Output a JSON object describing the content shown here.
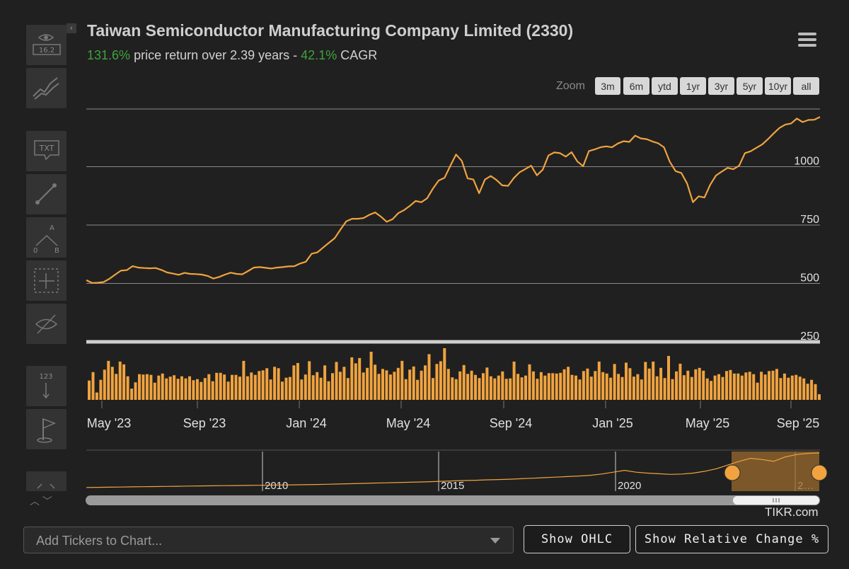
{
  "header": {
    "title": "Taiwan Semiconductor Manufacturing Company Limited (2330)",
    "price_return": "131.6%",
    "return_text": " price return over 2.39 years - ",
    "cagr": "42.1%",
    "cagr_label": " CAGR"
  },
  "toolbar": {
    "collapse_glyph": "‹",
    "eye_badge": "16.2",
    "text_tool_label": "TXT",
    "measure_labels": [
      "A",
      "0",
      "B"
    ],
    "numbers_label": "123",
    "tools": [
      "visibility-counter-icon",
      "trend-icon",
      "text-annotation-icon",
      "line-draw-icon",
      "measure-icon",
      "crosshair-select-icon",
      "hide-icon",
      "numbers-order-icon",
      "flag-icon",
      "expand-icon"
    ]
  },
  "zoom": {
    "label": "Zoom",
    "options": [
      "3m",
      "6m",
      "ytd",
      "1yr",
      "3yr",
      "5yr",
      "10yr",
      "all"
    ]
  },
  "chart_data": {
    "type": "line",
    "title": "Taiwan Semiconductor Manufacturing Company Limited (2330)",
    "series_color": "#f0a33f",
    "y_ticks": [
      250,
      500,
      750,
      1000
    ],
    "ylim": [
      250,
      1250
    ],
    "x_tick_labels": [
      "May '23",
      "Sep '23",
      "Jan '24",
      "May '24",
      "Sep '24",
      "Jan '25",
      "May '25",
      "Sep '25"
    ],
    "price": [
      514,
      502,
      503,
      506,
      520,
      538,
      555,
      557,
      574,
      568,
      566,
      565,
      566,
      558,
      547,
      542,
      537,
      545,
      541,
      540,
      538,
      532,
      521,
      528,
      538,
      546,
      541,
      539,
      553,
      568,
      570,
      567,
      564,
      568,
      570,
      573,
      574,
      585,
      593,
      627,
      633,
      654,
      674,
      694,
      731,
      766,
      777,
      777,
      780,
      794,
      804,
      786,
      764,
      775,
      801,
      814,
      832,
      853,
      848,
      865,
      906,
      941,
      952,
      1003,
      1052,
      1025,
      950,
      945,
      886,
      945,
      960,
      943,
      920,
      918,
      951,
      976,
      990,
      1004,
      963,
      987,
      1048,
      1061,
      1058,
      1043,
      1062,
      1022,
      1002,
      1067,
      1074,
      1083,
      1087,
      1083,
      1099,
      1109,
      1106,
      1133,
      1121,
      1118,
      1108,
      1100,
      1083,
      1021,
      981,
      973,
      928,
      848,
      873,
      868,
      923,
      962,
      979,
      995,
      989,
      1004,
      1058,
      1066,
      1081,
      1095,
      1118,
      1143,
      1166,
      1180,
      1185,
      1206,
      1191,
      1200,
      1201,
      1213
    ],
    "volume": [
      55,
      79,
      21,
      57,
      86,
      111,
      94,
      74,
      109,
      101,
      67,
      32,
      50,
      73,
      72,
      73,
      71,
      49,
      69,
      75,
      61,
      66,
      70,
      60,
      67,
      61,
      67,
      56,
      59,
      51,
      62,
      73,
      53,
      77,
      77,
      72,
      52,
      71,
      71,
      66,
      111,
      67,
      78,
      71,
      82,
      84,
      90,
      58,
      94,
      90,
      52,
      63,
      65,
      98,
      105,
      58,
      72,
      110,
      70,
      79,
      63,
      98,
      53,
      76,
      108,
      80,
      94,
      62,
      121,
      104,
      119,
      78,
      91,
      137,
      100,
      74,
      88,
      84,
      72,
      80,
      91,
      111,
      59,
      86,
      95,
      57,
      83,
      98,
      130,
      62,
      102,
      110,
      147,
      88,
      64,
      59,
      81,
      99,
      74,
      83,
      71,
      62,
      76,
      92,
      67,
      61,
      69,
      81,
      60,
      61,
      109,
      74,
      64,
      69,
      101,
      81,
      60,
      79,
      69,
      76,
      76,
      75,
      77,
      87,
      94,
      71,
      69,
      58,
      82,
      89,
      66,
      82,
      109,
      79,
      75,
      63,
      102,
      74,
      65,
      106,
      90,
      66,
      73,
      58,
      108,
      89,
      109,
      67,
      91,
      62,
      125,
      59,
      81,
      103,
      70,
      83,
      65,
      87,
      91,
      83,
      61,
      54,
      69,
      73,
      65,
      82,
      85,
      75,
      75,
      69,
      78,
      80,
      73,
      49,
      80,
      72,
      82,
      83,
      88,
      62,
      75,
      63,
      69,
      71,
      66,
      61,
      46,
      57,
      45,
      16
    ],
    "navigator": {
      "year_labels": [
        "2010",
        "2015",
        "2020",
        "2…"
      ],
      "price_history": [
        96,
        100,
        106,
        111,
        116,
        121,
        126,
        131,
        136,
        141,
        146,
        150,
        155,
        159,
        163,
        168,
        172,
        177,
        181,
        186,
        193,
        200,
        208,
        217,
        227,
        238,
        246,
        254,
        263,
        273,
        284,
        296,
        309,
        320,
        330,
        343,
        352,
        363,
        379,
        397,
        415,
        430,
        449,
        468,
        490,
        530,
        590,
        650,
        590,
        560,
        540,
        520,
        530,
        560,
        620,
        700,
        820,
        940,
        1040,
        1000,
        940,
        1080,
        1160,
        1200,
        1213
      ]
    }
  },
  "controls": {
    "ticker_placeholder": "Add Tickers to Chart...",
    "show_ohlc": "Show OHLC",
    "show_relative": "Show Relative Change %",
    "branding": "TIKR.com",
    "scroll_arrows": "︿ ﹀"
  },
  "colors": {
    "background": "#202020",
    "series": "#f0a33f",
    "positive": "#3fa33b",
    "grid": "#9a9a9a"
  }
}
